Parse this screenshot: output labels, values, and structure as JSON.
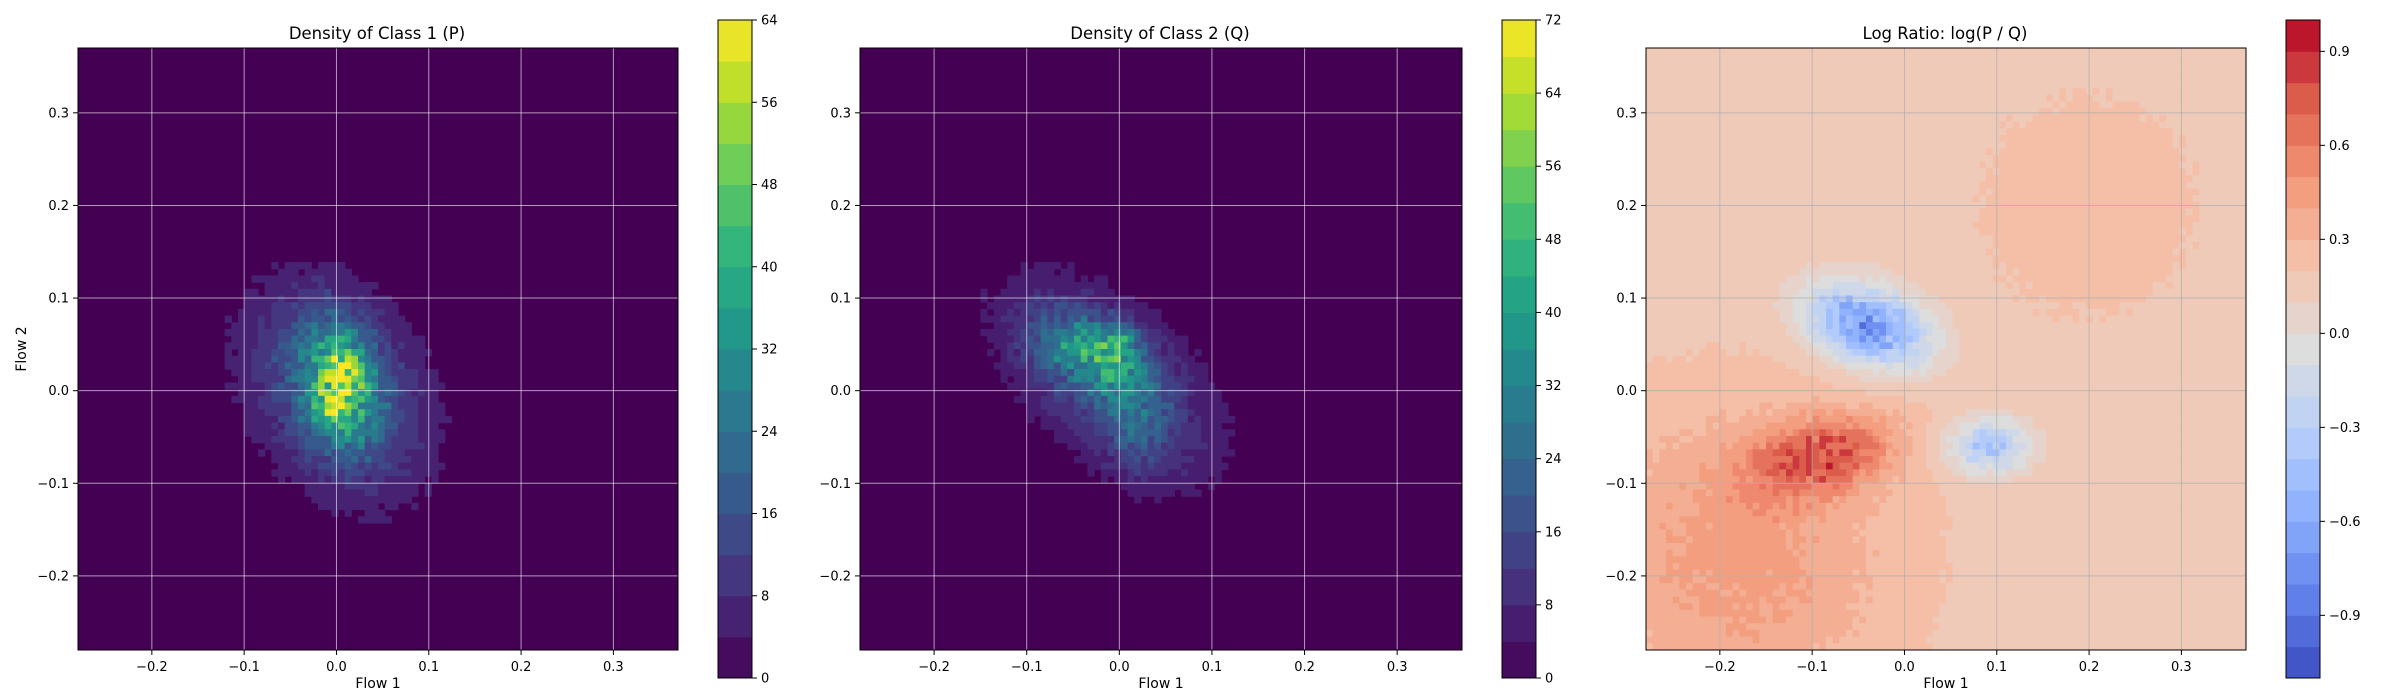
{
  "chart_data": [
    {
      "type": "heatmap",
      "kind": "filled-contour density",
      "title": "Density of Class 1 (P)",
      "xlabel": "Flow 1",
      "ylabel": "Flow 2",
      "xlim": [
        -0.28,
        0.37
      ],
      "ylim": [
        -0.28,
        0.37
      ],
      "xticks": [
        -0.2,
        -0.1,
        0.0,
        0.1,
        0.2,
        0.3
      ],
      "xtick_labels": [
        "−0.2",
        "−0.1",
        "0.0",
        "0.1",
        "0.2",
        "0.3"
      ],
      "yticks": [
        -0.2,
        -0.1,
        0.0,
        0.1,
        0.2,
        0.3
      ],
      "ytick_labels": [
        "−0.2",
        "−0.1",
        "0.0",
        "0.1",
        "0.2",
        "0.3"
      ],
      "grid": true,
      "colormap": "viridis",
      "colorbar": {
        "range": [
          0,
          64
        ],
        "levels": [
          0,
          4,
          8,
          12,
          16,
          20,
          24,
          28,
          32,
          36,
          40,
          44,
          48,
          52,
          56,
          60,
          64
        ],
        "ticks": [
          0,
          8,
          16,
          24,
          32,
          40,
          48,
          56,
          64
        ],
        "tick_labels": [
          "0",
          "8",
          "16",
          "24",
          "32",
          "40",
          "48",
          "56",
          "64"
        ]
      },
      "blobs": [
        {
          "cx": 0.0,
          "cy": 0.0,
          "sx": 0.065,
          "sy": 0.075,
          "rho": -0.3,
          "amp": 20,
          "noise": 0.5
        },
        {
          "cx": 0.005,
          "cy": 0.01,
          "sx": 0.028,
          "sy": 0.045,
          "rho": -0.2,
          "amp": 30,
          "noise": 0.8
        },
        {
          "cx": 0.01,
          "cy": 0.03,
          "sx": 0.012,
          "sy": 0.012,
          "rho": 0,
          "amp": 14,
          "noise": 0.6
        },
        {
          "cx": -0.01,
          "cy": -0.02,
          "sx": 0.014,
          "sy": 0.014,
          "rho": 0,
          "amp": 12,
          "noise": 0.6
        }
      ]
    },
    {
      "type": "heatmap",
      "kind": "filled-contour density",
      "title": "Density of Class 2 (Q)",
      "xlabel": "Flow 1",
      "ylabel": "",
      "xlim": [
        -0.28,
        0.37
      ],
      "ylim": [
        -0.28,
        0.37
      ],
      "xticks": [
        -0.2,
        -0.1,
        0.0,
        0.1,
        0.2,
        0.3
      ],
      "xtick_labels": [
        "−0.2",
        "−0.1",
        "0.0",
        "0.1",
        "0.2",
        "0.3"
      ],
      "yticks": [
        -0.2,
        -0.1,
        0.0,
        0.1,
        0.2,
        0.3
      ],
      "ytick_labels": [
        "−0.2",
        "−0.1",
        "0.0",
        "0.1",
        "0.2",
        "0.3"
      ],
      "grid": true,
      "colormap": "viridis",
      "colorbar": {
        "range": [
          0,
          72
        ],
        "levels": [
          0,
          4,
          8,
          12,
          16,
          20,
          24,
          28,
          32,
          36,
          40,
          44,
          48,
          52,
          56,
          60,
          64,
          68,
          72
        ],
        "ticks": [
          0,
          8,
          16,
          24,
          32,
          40,
          48,
          56,
          64,
          72
        ],
        "tick_labels": [
          "0",
          "8",
          "16",
          "24",
          "32",
          "40",
          "48",
          "56",
          "64",
          "72"
        ]
      },
      "blobs": [
        {
          "cx": -0.01,
          "cy": 0.01,
          "sx": 0.075,
          "sy": 0.07,
          "rho": -0.55,
          "amp": 18,
          "noise": 0.5
        },
        {
          "cx": -0.03,
          "cy": 0.04,
          "sx": 0.04,
          "sy": 0.03,
          "rho": -0.4,
          "amp": 26,
          "noise": 0.8
        },
        {
          "cx": 0.0,
          "cy": 0.05,
          "sx": 0.015,
          "sy": 0.015,
          "rho": 0,
          "amp": 18,
          "noise": 0.6
        },
        {
          "cx": 0.02,
          "cy": -0.04,
          "sx": 0.025,
          "sy": 0.035,
          "rho": 0,
          "amp": 10,
          "noise": 0.6
        }
      ]
    },
    {
      "type": "heatmap",
      "kind": "filled-contour log ratio",
      "title": "Log Ratio: log(P / Q)",
      "xlabel": "Flow 1",
      "ylabel": "",
      "xlim": [
        -0.28,
        0.37
      ],
      "ylim": [
        -0.28,
        0.37
      ],
      "xticks": [
        -0.2,
        -0.1,
        0.0,
        0.1,
        0.2,
        0.3
      ],
      "xtick_labels": [
        "−0.2",
        "−0.1",
        "0.0",
        "0.1",
        "0.2",
        "0.3"
      ],
      "yticks": [
        -0.2,
        -0.1,
        0.0,
        0.1,
        0.2,
        0.3
      ],
      "ytick_labels": [
        "−0.2",
        "−0.1",
        "0.0",
        "0.1",
        "0.2",
        "0.3"
      ],
      "grid": true,
      "colormap": "coolwarm",
      "colorbar": {
        "range": [
          -1.1,
          1.0
        ],
        "step": 0.1,
        "ticks": [
          -0.9,
          -0.6,
          -0.3,
          0.0,
          0.3,
          0.6,
          0.9
        ],
        "tick_labels": [
          "−0.9",
          "−0.6",
          "−0.3",
          "0.0",
          "0.3",
          "0.6",
          "0.9"
        ]
      },
      "base": 0.15,
      "blobs": [
        {
          "cx": -0.04,
          "cy": 0.07,
          "sx": 0.045,
          "sy": 0.03,
          "rho": -0.3,
          "amp": -0.9,
          "noise": 0.5
        },
        {
          "cx": 0.09,
          "cy": -0.06,
          "sx": 0.03,
          "sy": 0.02,
          "rho": 0,
          "amp": -0.55,
          "noise": 0.5
        },
        {
          "cx": -0.09,
          "cy": -0.07,
          "sx": 0.055,
          "sy": 0.03,
          "rho": 0.3,
          "amp": 0.55,
          "noise": 0.5
        },
        {
          "cx": -0.18,
          "cy": -0.18,
          "sx": 0.12,
          "sy": 0.12,
          "rho": 0,
          "amp": 0.3,
          "noise": 0.3
        },
        {
          "cx": 0.2,
          "cy": 0.2,
          "sx": 0.1,
          "sy": 0.1,
          "rho": 0,
          "amp": 0.1,
          "noise": 0.3
        }
      ]
    }
  ],
  "colors": {
    "grid": "#ffffff",
    "grid_ratio": "#b0b0b0",
    "frame": "#000000"
  }
}
